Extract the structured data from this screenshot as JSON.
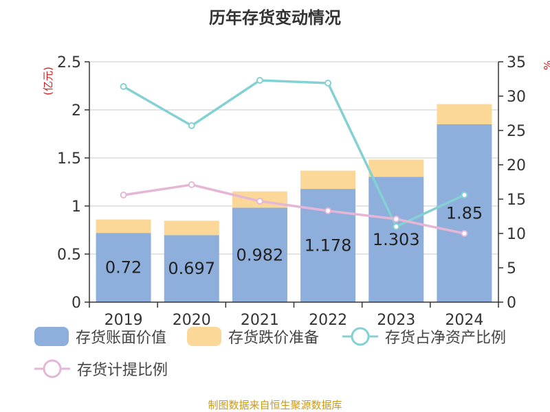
{
  "chart_data": {
    "type": "bar",
    "title": "历年存货变动情况",
    "categories": [
      "2019",
      "2020",
      "2021",
      "2022",
      "2023",
      "2024"
    ],
    "y_left": {
      "unit_label": "(亿元)",
      "ylim": [
        0,
        2.5
      ],
      "ticks": [
        "0",
        "0.5",
        "1",
        "1.5",
        "2",
        "2.5"
      ]
    },
    "y_right": {
      "unit_label": "%",
      "ylim": [
        0,
        35
      ],
      "ticks": [
        "0",
        "5",
        "10",
        "15",
        "20",
        "25",
        "30",
        "35"
      ]
    },
    "series": [
      {
        "name": "存货账面价值",
        "type": "bar",
        "stack": "inv",
        "axis": "left",
        "color": "#8eaedb",
        "values": [
          0.72,
          0.697,
          0.982,
          1.178,
          1.303,
          1.85
        ],
        "labels": [
          "0.72",
          "0.697",
          "0.982",
          "1.178",
          "1.303",
          "1.85"
        ]
      },
      {
        "name": "存货跌价准备",
        "type": "bar",
        "stack": "inv",
        "axis": "left",
        "color": "#fcd898",
        "values": [
          0.14,
          0.15,
          0.17,
          0.19,
          0.18,
          0.21
        ]
      },
      {
        "name": "存货占净资产比例",
        "type": "line",
        "axis": "right",
        "color": "#84d1d4",
        "values": [
          31.4,
          25.7,
          32.3,
          31.9,
          11.0,
          15.6
        ]
      },
      {
        "name": "存货计提比例",
        "type": "line",
        "axis": "right",
        "color": "#e6b6d7",
        "values": [
          15.6,
          17.1,
          14.7,
          13.3,
          12.1,
          10.0
        ]
      }
    ],
    "grid": true,
    "legend_position": "bottom"
  },
  "source_note": "制图数据来自恒生聚源数据库"
}
